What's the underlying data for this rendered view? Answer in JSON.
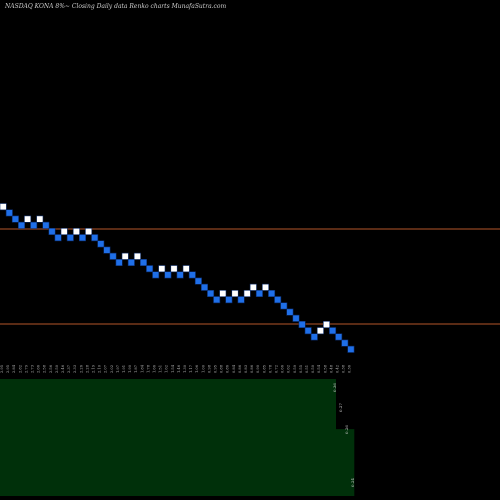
{
  "chart_data": {
    "type": "renko",
    "title": "NASDAQ KONA 8%~  Closing Daily data  Renko  charts MunafaSutra.com",
    "colors": {
      "background": "#000000",
      "up_brick": "#ffffff",
      "down_brick": "#1f6fe8",
      "brick_outline": "#0a2a66",
      "reference_line": "#b5562a",
      "volume_fill": "#00300a"
    },
    "bricks": [
      "up",
      "down",
      "down",
      "down",
      "up",
      "down",
      "up",
      "down",
      "down",
      "down",
      "up",
      "down",
      "up",
      "down",
      "up",
      "down",
      "down",
      "down",
      "down",
      "down",
      "up",
      "down",
      "up",
      "down",
      "down",
      "down",
      "up",
      "down",
      "up",
      "down",
      "up",
      "down",
      "down",
      "down",
      "down",
      "down",
      "up",
      "down",
      "up",
      "down",
      "up",
      "up",
      "down",
      "up",
      "down",
      "down",
      "down",
      "down",
      "down",
      "down",
      "down",
      "down",
      "up",
      "up",
      "down",
      "down",
      "down",
      "down"
    ],
    "brick_levels": [
      0,
      -1,
      -2,
      -3,
      -2,
      -3,
      -2,
      -3,
      -4,
      -5,
      -4,
      -5,
      -4,
      -5,
      -4,
      -5,
      -6,
      -7,
      -8,
      -9,
      -8,
      -9,
      -8,
      -9,
      -10,
      -11,
      -10,
      -11,
      -10,
      -11,
      -10,
      -11,
      -12,
      -13,
      -14,
      -15,
      -14,
      -15,
      -14,
      -15,
      -14,
      -13,
      -14,
      -13,
      -14,
      -15,
      -16,
      -17,
      -18,
      -19,
      -20,
      -21,
      -20,
      -19,
      -20,
      -21,
      -22,
      -23
    ],
    "reference_lines": [
      "upper",
      "lower"
    ],
    "x_tick_labels": [
      "2.95",
      "2.95",
      "2.84",
      "2.82",
      "2.79",
      "2.73",
      "2.66",
      "2.58",
      "2.56",
      "2.50",
      "2.46",
      "2.37",
      "2.33",
      "2.26",
      "2.28",
      "2.19",
      "2.10",
      "2.07",
      "2.02",
      "1.97",
      "1.91",
      "1.90",
      "1.87",
      "1.84",
      "1.78",
      "1.66",
      "1.51",
      "1.62",
      "1.54",
      "1.46",
      "1.30",
      "1.17",
      "1.06",
      "1.00",
      "0.98",
      "0.95",
      "0.88",
      "0.86",
      "0.84",
      "0.86",
      "0.83",
      "0.86",
      "0.90",
      "0.85",
      "0.78",
      "0.72",
      "0.66",
      "0.62",
      "0.59",
      "0.55",
      "0.51",
      "0.50",
      "0.54",
      "0.58",
      "0.48",
      "0.42",
      "0.38",
      "0.36"
    ],
    "volume_labels": [
      "0.36",
      "0.27",
      "0.26",
      "0.24"
    ],
    "volume_levels": [
      0.7,
      0.7,
      0.7,
      0.7,
      0.7,
      0.7,
      0.7,
      0.7,
      0.7,
      0.7,
      0.7,
      0.7,
      0.7,
      0.7,
      0.7,
      0.7,
      0.7,
      0.7,
      0.7,
      0.7,
      0.7,
      0.7,
      0.7,
      0.7,
      0.7,
      0.7,
      0.7,
      0.7,
      0.7,
      0.7,
      0.7,
      0.7,
      0.7,
      0.7,
      0.7,
      0.7,
      0.7,
      0.7,
      0.7,
      0.7,
      0.7,
      0.7,
      0.7,
      0.7,
      0.7,
      0.7,
      0.7,
      0.7,
      0.7,
      0.7,
      0.7,
      0.7,
      0.7,
      0.7,
      0.7,
      0.4,
      0.4,
      0.4
    ]
  }
}
